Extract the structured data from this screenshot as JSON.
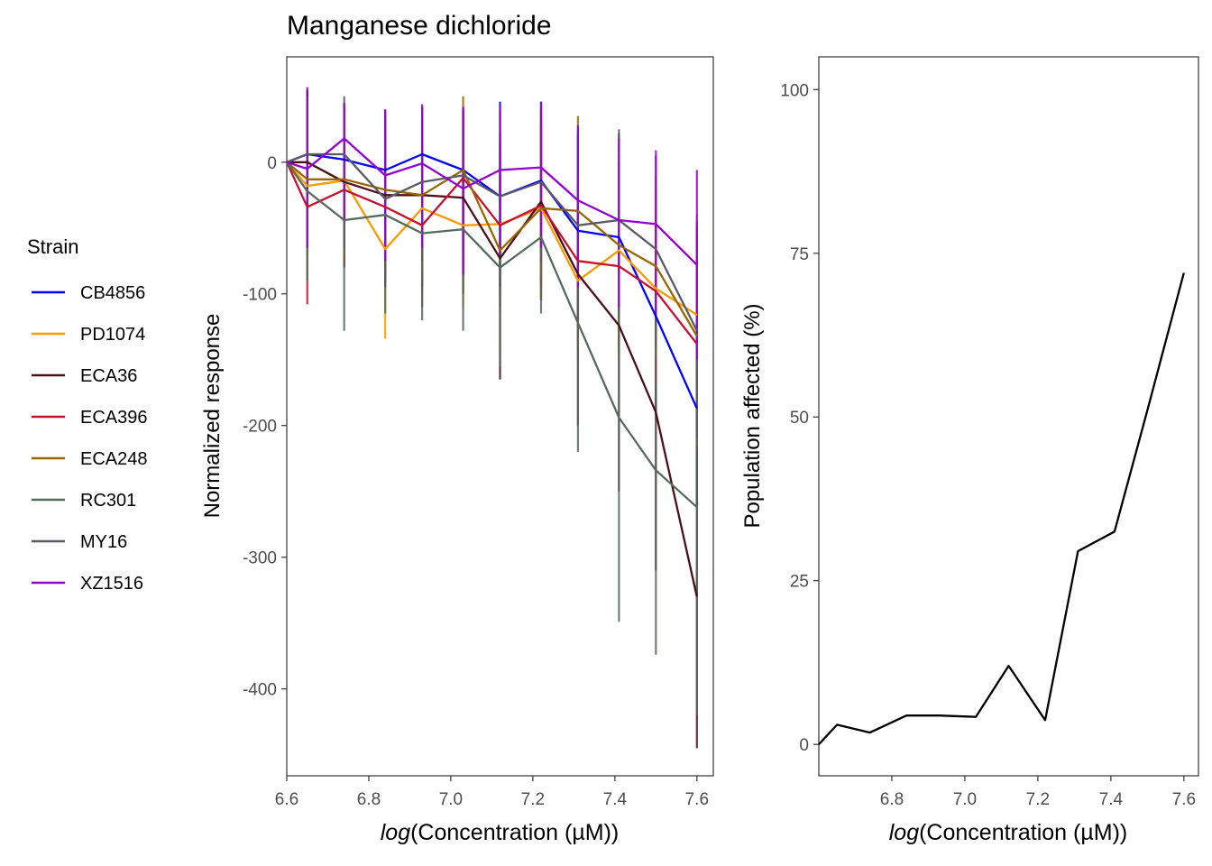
{
  "title": "Manganese dichloride",
  "legend": {
    "title": "Strain",
    "position": "left"
  },
  "chart_data": [
    {
      "type": "line",
      "title": "Manganese dichloride",
      "xlabel_italic": "log",
      "xlabel_rest": "(Concentration (µM))",
      "ylabel": "Normalized response",
      "xlim": [
        6.6,
        7.64
      ],
      "ylim": [
        -466,
        80
      ],
      "xticks": [
        6.6,
        6.8,
        7.0,
        7.2,
        7.4,
        7.6
      ],
      "xtick_labels": [
        "6.6",
        "6.8",
        "7.0",
        "7.2",
        "7.4",
        "7.6"
      ],
      "yticks": [
        0,
        -100,
        -200,
        -300,
        -400
      ],
      "ytick_labels": [
        "0",
        "-100",
        "-200",
        "-300",
        "-400"
      ],
      "grid": false,
      "x": [
        6.6,
        6.65,
        6.74,
        6.84,
        6.93,
        7.03,
        7.12,
        7.22,
        7.31,
        7.41,
        7.5,
        7.6
      ],
      "series": [
        {
          "name": "CB4856",
          "color": "#0000ff",
          "values": [
            0,
            6,
            2,
            -6,
            6,
            -6,
            -26,
            -14,
            -52,
            -57,
            -117,
            -187
          ],
          "err_low": [
            0,
            -65,
            -75,
            -85,
            -75,
            -87,
            -100,
            -90,
            -125,
            -140,
            -190,
            -260
          ],
          "err_high": [
            0,
            55,
            42,
            35,
            42,
            42,
            46,
            46,
            22,
            22,
            -40,
            -115
          ]
        },
        {
          "name": "PD1074",
          "color": "#ff9900",
          "values": [
            0,
            -18,
            -14,
            -66,
            -35,
            -48,
            -47,
            -35,
            -90,
            -67,
            -96,
            -116
          ],
          "err_low": [
            0,
            -60,
            -65,
            -134,
            -100,
            -110,
            -115,
            -100,
            -150,
            -140,
            -170,
            -190
          ],
          "err_high": [
            0,
            25,
            40,
            5,
            30,
            20,
            25,
            30,
            -30,
            10,
            -20,
            -40
          ]
        },
        {
          "name": "ECA36",
          "color": "#4b0f1a",
          "values": [
            0,
            0,
            -15,
            -25,
            -25,
            -27,
            -73,
            -30,
            -85,
            -124,
            -190,
            -330
          ],
          "err_low": [
            0,
            -60,
            -80,
            -90,
            -95,
            -100,
            -165,
            -105,
            -200,
            -250,
            -310,
            -445
          ],
          "err_high": [
            0,
            55,
            40,
            38,
            40,
            38,
            20,
            40,
            20,
            0,
            -70,
            -215
          ]
        },
        {
          "name": "ECA396",
          "color": "#c8102e",
          "values": [
            0,
            -34,
            -21,
            -34,
            -48,
            -12,
            -48,
            -33,
            -75,
            -79,
            -98,
            -138
          ],
          "err_low": [
            0,
            -108,
            -80,
            -95,
            -110,
            -80,
            -110,
            -95,
            -140,
            -150,
            -170,
            -220
          ],
          "err_high": [
            0,
            38,
            38,
            25,
            15,
            40,
            15,
            30,
            -10,
            -5,
            -25,
            -55
          ]
        },
        {
          "name": "ECA248",
          "color": "#996600",
          "values": [
            0,
            -13,
            -13,
            -21,
            -25,
            -6,
            -67,
            -35,
            -37,
            -63,
            -79,
            -132
          ],
          "err_low": [
            0,
            -70,
            -75,
            -85,
            -90,
            -65,
            -145,
            -105,
            -110,
            -130,
            -150,
            -215
          ],
          "err_high": [
            0,
            45,
            45,
            40,
            35,
            50,
            10,
            35,
            35,
            5,
            -10,
            -50
          ]
        },
        {
          "name": "RC301",
          "color": "#556b5b",
          "values": [
            0,
            -22,
            -44,
            -40,
            -54,
            -51,
            -80,
            -57,
            -122,
            -194,
            -234,
            -262
          ],
          "err_low": [
            0,
            -90,
            -128,
            -115,
            -120,
            -128,
            -155,
            -115,
            -220,
            -349,
            -374,
            -420
          ],
          "err_high": [
            0,
            45,
            40,
            35,
            12,
            25,
            -5,
            0,
            -25,
            -40,
            -95,
            -105
          ]
        },
        {
          "name": "MY16",
          "color": "#5a5a66",
          "values": [
            0,
            6,
            6,
            -28,
            -15,
            -10,
            -26,
            -15,
            -48,
            -44,
            -66,
            -128
          ],
          "err_low": [
            0,
            -60,
            -65,
            -95,
            -75,
            -70,
            -95,
            -75,
            -120,
            -115,
            -140,
            -210
          ],
          "err_high": [
            0,
            50,
            50,
            40,
            42,
            40,
            40,
            42,
            25,
            25,
            5,
            -45
          ]
        },
        {
          "name": "XZ1516",
          "color": "#9400d3",
          "values": [
            0,
            -5,
            18,
            -10,
            -1,
            -20,
            -6,
            -4,
            -29,
            -44,
            -47,
            -78
          ],
          "err_low": [
            0,
            -65,
            -45,
            -75,
            -65,
            -85,
            -70,
            -65,
            -95,
            -110,
            -115,
            -150
          ],
          "err_high": [
            0,
            57,
            45,
            40,
            44,
            42,
            42,
            45,
            28,
            18,
            9,
            -6
          ]
        }
      ]
    },
    {
      "type": "line",
      "title": "",
      "xlabel_italic": "log",
      "xlabel_rest": "(Concentration (µM))",
      "ylabel": "Population affected (%)",
      "xlim": [
        6.6,
        7.64
      ],
      "ylim": [
        -4.8,
        105
      ],
      "xticks": [
        6.8,
        7.0,
        7.2,
        7.4,
        7.6
      ],
      "xtick_labels": [
        "6.8",
        "7.0",
        "7.2",
        "7.4",
        "7.6"
      ],
      "yticks": [
        0,
        25,
        50,
        75,
        100
      ],
      "ytick_labels": [
        "0",
        "25",
        "50",
        "75",
        "100"
      ],
      "grid": false,
      "series": [
        {
          "name": "Population affected",
          "color": "#000000",
          "x": [
            6.6,
            6.65,
            6.74,
            6.84,
            6.93,
            7.03,
            7.12,
            7.22,
            7.31,
            7.41,
            7.5,
            7.6
          ],
          "values": [
            0,
            3,
            1.8,
            4.4,
            4.4,
            4.2,
            12,
            3.7,
            29.5,
            32.5,
            51,
            72
          ]
        }
      ]
    }
  ]
}
